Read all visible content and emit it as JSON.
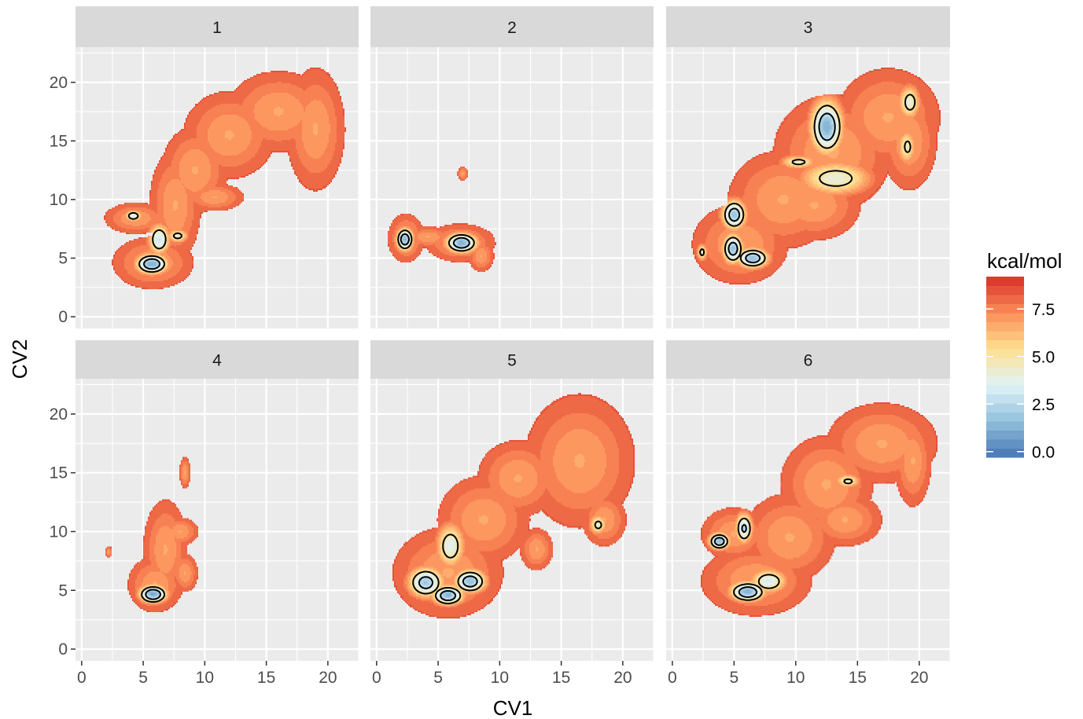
{
  "chart_data": {
    "type": "heatmap",
    "subtype": "faceted free-energy surface with contour lines",
    "xlabel": "CV1",
    "ylabel": "CV2",
    "xlim": [
      -0.5,
      22.5
    ],
    "ylim": [
      -1,
      23
    ],
    "x_ticks": [
      0,
      5,
      10,
      15,
      20
    ],
    "y_ticks": [
      0,
      5,
      10,
      15,
      20
    ],
    "grid": true,
    "legend": {
      "title": "kcal/mol",
      "position": "right",
      "range": [
        -0.3,
        9.2
      ],
      "ticks": [
        0.0,
        2.5,
        5.0,
        7.5
      ],
      "tick_labels": [
        "0.0",
        "2.5",
        "5.0",
        "7.5"
      ],
      "colors": [
        "#4575b4",
        "#91bfdb",
        "#e0f3f8",
        "#fee090",
        "#fc8d59",
        "#d73027"
      ],
      "bins": 20
    },
    "contour_levels": [
      1,
      3,
      5
    ],
    "contour_color": "#000000",
    "facets": [
      {
        "label": "1",
        "minima": [
          {
            "x": 5.7,
            "y": 4.5,
            "depth": 1.2,
            "sx": 0.9,
            "sy": 0.6
          },
          {
            "x": 4.2,
            "y": 8.6,
            "depth": 3.6,
            "sx": 0.5,
            "sy": 0.35
          },
          {
            "x": 6.3,
            "y": 6.6,
            "depth": 3.0,
            "sx": 0.6,
            "sy": 0.9
          },
          {
            "x": 7.8,
            "y": 6.9,
            "depth": 4.3,
            "sx": 0.6,
            "sy": 0.4
          }
        ],
        "region": [
          {
            "x": 5.8,
            "y": 4.6,
            "sx": 2.2,
            "sy": 1.5
          },
          {
            "x": 4.4,
            "y": 8.4,
            "sx": 1.7,
            "sy": 0.9
          },
          {
            "x": 7.6,
            "y": 9.5,
            "sx": 1.4,
            "sy": 3.2
          },
          {
            "x": 9.2,
            "y": 12.5,
            "sx": 1.8,
            "sy": 2.5
          },
          {
            "x": 12.0,
            "y": 15.5,
            "sx": 2.5,
            "sy": 2.5
          },
          {
            "x": 16.0,
            "y": 17.5,
            "sx": 2.8,
            "sy": 2.3
          },
          {
            "x": 19.0,
            "y": 16.0,
            "sx": 1.6,
            "sy": 3.5
          },
          {
            "x": 10.8,
            "y": 10.2,
            "sx": 1.6,
            "sy": 0.8
          }
        ]
      },
      {
        "label": "2",
        "minima": [
          {
            "x": 2.3,
            "y": 6.6,
            "depth": 1.5,
            "sx": 0.5,
            "sy": 0.7
          },
          {
            "x": 6.9,
            "y": 6.3,
            "depth": 1.2,
            "sx": 0.9,
            "sy": 0.6
          }
        ],
        "region": [
          {
            "x": 2.4,
            "y": 6.7,
            "sx": 1.0,
            "sy": 1.4
          },
          {
            "x": 6.8,
            "y": 6.3,
            "sx": 1.9,
            "sy": 1.1
          },
          {
            "x": 4.2,
            "y": 6.8,
            "sx": 1.3,
            "sy": 0.6
          },
          {
            "x": 8.5,
            "y": 5.2,
            "sx": 0.7,
            "sy": 0.9
          },
          {
            "x": 7.0,
            "y": 12.2,
            "sx": 0.3,
            "sy": 0.4
          }
        ]
      },
      {
        "label": "3",
        "minima": [
          {
            "x": 12.5,
            "y": 16.2,
            "depth": 1.2,
            "sx": 0.9,
            "sy": 1.6
          },
          {
            "x": 5.0,
            "y": 8.7,
            "depth": 1.8,
            "sx": 0.7,
            "sy": 0.9
          },
          {
            "x": 4.9,
            "y": 5.8,
            "depth": 1.8,
            "sx": 0.6,
            "sy": 0.9
          },
          {
            "x": 6.5,
            "y": 5.0,
            "depth": 1.6,
            "sx": 0.9,
            "sy": 0.6
          },
          {
            "x": 13.2,
            "y": 11.8,
            "depth": 4.0,
            "sx": 2.0,
            "sy": 1.0
          },
          {
            "x": 19.2,
            "y": 18.3,
            "depth": 4.0,
            "sx": 0.6,
            "sy": 1.0
          },
          {
            "x": 19.0,
            "y": 14.5,
            "depth": 4.5,
            "sx": 0.5,
            "sy": 1.0
          },
          {
            "x": 10.2,
            "y": 13.2,
            "depth": 4.4,
            "sx": 1.0,
            "sy": 0.4
          },
          {
            "x": 2.4,
            "y": 5.5,
            "depth": 4.3,
            "sx": 0.3,
            "sy": 0.5
          }
        ],
        "region": [
          {
            "x": 5.5,
            "y": 6.2,
            "sx": 2.6,
            "sy": 2.3
          },
          {
            "x": 9.0,
            "y": 10.0,
            "sx": 3.0,
            "sy": 2.8
          },
          {
            "x": 13.0,
            "y": 14.0,
            "sx": 3.2,
            "sy": 3.3
          },
          {
            "x": 17.5,
            "y": 17.0,
            "sx": 2.8,
            "sy": 2.8
          },
          {
            "x": 19.2,
            "y": 15.0,
            "sx": 1.5,
            "sy": 2.8
          },
          {
            "x": 11.5,
            "y": 9.5,
            "sx": 2.5,
            "sy": 2.0
          }
        ]
      },
      {
        "label": "4",
        "minima": [
          {
            "x": 5.8,
            "y": 4.7,
            "depth": 1.0,
            "sx": 0.8,
            "sy": 0.55
          }
        ],
        "region": [
          {
            "x": 6.0,
            "y": 5.5,
            "sx": 1.5,
            "sy": 1.6
          },
          {
            "x": 6.8,
            "y": 8.5,
            "sx": 1.2,
            "sy": 2.8
          },
          {
            "x": 8.0,
            "y": 10.0,
            "sx": 1.0,
            "sy": 0.8
          },
          {
            "x": 8.4,
            "y": 6.5,
            "sx": 0.7,
            "sy": 1.1
          },
          {
            "x": 8.4,
            "y": 15.0,
            "sx": 0.3,
            "sy": 0.9
          },
          {
            "x": 2.2,
            "y": 8.3,
            "sx": 0.2,
            "sy": 0.3
          }
        ]
      },
      {
        "label": "5",
        "minima": [
          {
            "x": 5.8,
            "y": 4.6,
            "depth": 1.4,
            "sx": 0.9,
            "sy": 0.6
          },
          {
            "x": 7.6,
            "y": 5.8,
            "depth": 1.6,
            "sx": 0.9,
            "sy": 0.7
          },
          {
            "x": 4.0,
            "y": 5.7,
            "depth": 2.0,
            "sx": 1.0,
            "sy": 0.9
          },
          {
            "x": 6.0,
            "y": 8.8,
            "depth": 3.6,
            "sx": 0.8,
            "sy": 1.3
          },
          {
            "x": 18.0,
            "y": 10.6,
            "depth": 4.4,
            "sx": 0.5,
            "sy": 0.6
          }
        ],
        "region": [
          {
            "x": 5.8,
            "y": 6.5,
            "sx": 3.0,
            "sy": 2.6
          },
          {
            "x": 8.7,
            "y": 11.0,
            "sx": 2.5,
            "sy": 2.5
          },
          {
            "x": 11.5,
            "y": 14.5,
            "sx": 2.2,
            "sy": 2.2
          },
          {
            "x": 16.5,
            "y": 16.0,
            "sx": 3.0,
            "sy": 3.8
          },
          {
            "x": 18.5,
            "y": 11.0,
            "sx": 1.2,
            "sy": 1.5
          },
          {
            "x": 13.0,
            "y": 8.5,
            "sx": 0.9,
            "sy": 1.2
          }
        ]
      },
      {
        "label": "6",
        "minima": [
          {
            "x": 6.1,
            "y": 4.9,
            "depth": 1.2,
            "sx": 1.0,
            "sy": 0.6
          },
          {
            "x": 3.8,
            "y": 9.2,
            "depth": 1.6,
            "sx": 0.6,
            "sy": 0.5
          },
          {
            "x": 5.8,
            "y": 10.3,
            "depth": 2.6,
            "sx": 0.5,
            "sy": 0.9
          },
          {
            "x": 7.8,
            "y": 5.8,
            "depth": 3.3,
            "sx": 1.0,
            "sy": 0.7
          },
          {
            "x": 14.2,
            "y": 14.3,
            "depth": 4.5,
            "sx": 0.7,
            "sy": 0.4
          }
        ],
        "region": [
          {
            "x": 6.8,
            "y": 5.8,
            "sx": 3.0,
            "sy": 2.0
          },
          {
            "x": 5.0,
            "y": 9.8,
            "sx": 1.8,
            "sy": 1.5
          },
          {
            "x": 9.5,
            "y": 9.5,
            "sx": 2.5,
            "sy": 2.5
          },
          {
            "x": 12.5,
            "y": 14.0,
            "sx": 2.5,
            "sy": 2.8
          },
          {
            "x": 17.0,
            "y": 17.5,
            "sx": 3.0,
            "sy": 2.3
          },
          {
            "x": 19.5,
            "y": 16.0,
            "sx": 1.0,
            "sy": 2.6
          },
          {
            "x": 14.0,
            "y": 11.0,
            "sx": 2.0,
            "sy": 1.5
          }
        ]
      }
    ]
  }
}
